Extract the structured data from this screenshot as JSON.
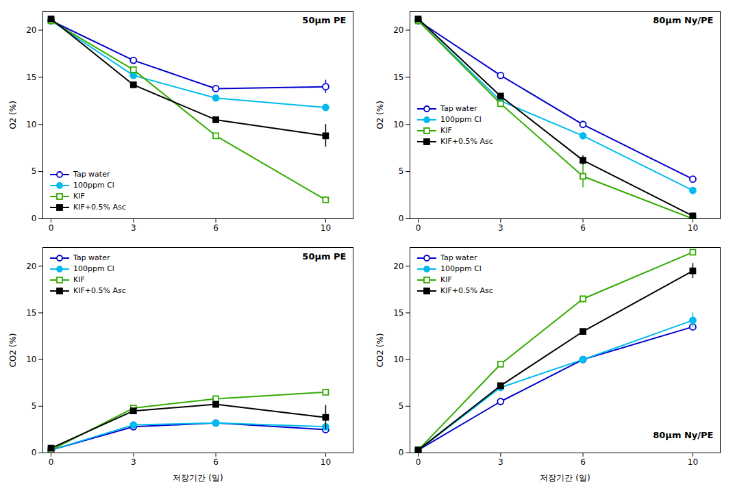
{
  "chart_data": [
    {
      "type": "line",
      "title": "50μm PE",
      "y_label": "O2 (%)",
      "x": [
        0,
        3,
        6,
        10
      ],
      "xlim": [
        -0.3,
        11.0
      ],
      "xticks": [
        0,
        3,
        6,
        10
      ],
      "ylim": [
        0,
        22
      ],
      "yticks": [
        0,
        5,
        10,
        15,
        20
      ],
      "grid": false,
      "legend": "lower left",
      "series": [
        {
          "name": "Tap water",
          "color": "#0000cc",
          "marker": "circle-open",
          "values": [
            21.0,
            16.8,
            13.8,
            14.0
          ],
          "yerr": [
            0,
            0,
            0,
            0.7
          ]
        },
        {
          "name": "100ppm Cl",
          "color": "#00bbee",
          "marker": "circle",
          "values": [
            21.0,
            15.2,
            12.8,
            11.8
          ],
          "yerr": [
            0,
            0,
            0,
            0
          ]
        },
        {
          "name": "KIF",
          "color": "#33aa00",
          "marker": "square-open",
          "values": [
            21.0,
            15.8,
            8.8,
            2.0
          ],
          "yerr": [
            0,
            0,
            0,
            0
          ]
        },
        {
          "name": "KIF+0.5% Asc",
          "color": "#000000",
          "marker": "square",
          "values": [
            21.2,
            14.2,
            10.5,
            8.8
          ],
          "yerr": [
            0,
            0,
            0,
            1.2
          ]
        }
      ]
    },
    {
      "type": "line",
      "title": "80μm Ny/PE",
      "y_label": "O2 (%)",
      "x": [
        0,
        3,
        6,
        10
      ],
      "xlim": [
        -0.3,
        11.0
      ],
      "xticks": [
        0,
        3,
        6,
        10
      ],
      "ylim": [
        0,
        22
      ],
      "yticks": [
        0,
        5,
        10,
        15,
        20
      ],
      "grid": false,
      "legend": "center left",
      "series": [
        {
          "name": "Tap water",
          "color": "#0000cc",
          "marker": "circle-open",
          "values": [
            21.0,
            15.2,
            10.0,
            4.2
          ],
          "yerr": [
            0,
            0,
            0,
            0
          ]
        },
        {
          "name": "100ppm Cl",
          "color": "#00bbee",
          "marker": "circle",
          "values": [
            21.0,
            12.5,
            8.8,
            3.0
          ],
          "yerr": [
            0,
            0,
            0,
            0
          ]
        },
        {
          "name": "KIF",
          "color": "#33aa00",
          "marker": "square-open",
          "values": [
            21.0,
            12.2,
            4.5,
            0.0
          ],
          "yerr": [
            0,
            0,
            1.2,
            0
          ]
        },
        {
          "name": "KIF+0.5% Asc",
          "color": "#000000",
          "marker": "square",
          "values": [
            21.2,
            13.0,
            6.2,
            0.3
          ],
          "yerr": [
            0,
            0,
            0.5,
            0
          ]
        }
      ]
    },
    {
      "type": "line",
      "title": "50μm PE",
      "y_label": "CO2 (%)",
      "x_label": "저장기간 (일)",
      "x": [
        0,
        3,
        6,
        10
      ],
      "xlim": [
        -0.3,
        11.0
      ],
      "xticks": [
        0,
        3,
        6,
        10
      ],
      "ylim": [
        0,
        22
      ],
      "yticks": [
        0,
        5,
        10,
        15,
        20
      ],
      "grid": false,
      "legend": "upper left",
      "series": [
        {
          "name": "Tap water",
          "color": "#0000cc",
          "marker": "circle-open",
          "values": [
            0.3,
            2.8,
            3.2,
            2.5
          ],
          "yerr": [
            0,
            0,
            0,
            0
          ]
        },
        {
          "name": "100ppm Cl",
          "color": "#00bbee",
          "marker": "circle",
          "values": [
            0.3,
            3.0,
            3.2,
            2.8
          ],
          "yerr": [
            0,
            0,
            0,
            0
          ]
        },
        {
          "name": "KIF",
          "color": "#33aa00",
          "marker": "square-open",
          "values": [
            0.3,
            4.8,
            5.8,
            6.5
          ],
          "yerr": [
            0,
            0,
            0,
            0
          ]
        },
        {
          "name": "KIF+0.5% Asc",
          "color": "#000000",
          "marker": "square",
          "values": [
            0.5,
            4.5,
            5.2,
            3.8
          ],
          "yerr": [
            0,
            0,
            0,
            1.3
          ]
        }
      ]
    },
    {
      "type": "line",
      "title": "80μm Ny/PE",
      "y_label": "CO2 (%)",
      "x_label": "저장기간 (일)",
      "x": [
        0,
        3,
        6,
        10
      ],
      "xlim": [
        -0.3,
        11.0
      ],
      "xticks": [
        0,
        3,
        6,
        10
      ],
      "ylim": [
        0,
        22
      ],
      "yticks": [
        0,
        5,
        10,
        15,
        20
      ],
      "grid": false,
      "legend": "upper left",
      "series": [
        {
          "name": "Tap water",
          "color": "#0000cc",
          "marker": "circle-open",
          "values": [
            0.3,
            5.5,
            10.0,
            13.5
          ],
          "yerr": [
            0,
            0,
            0,
            0
          ]
        },
        {
          "name": "100ppm Cl",
          "color": "#00bbee",
          "marker": "circle",
          "values": [
            0.3,
            7.0,
            10.0,
            14.2
          ],
          "yerr": [
            0,
            0,
            0,
            0.8
          ]
        },
        {
          "name": "KIF",
          "color": "#33aa00",
          "marker": "square-open",
          "values": [
            0.3,
            9.5,
            16.5,
            21.5
          ],
          "yerr": [
            0,
            0,
            0,
            0
          ]
        },
        {
          "name": "KIF+0.5% Asc",
          "color": "#000000",
          "marker": "square",
          "values": [
            0.3,
            7.2,
            13.0,
            19.5
          ],
          "yerr": [
            0,
            0,
            0,
            0.8
          ]
        }
      ]
    }
  ]
}
